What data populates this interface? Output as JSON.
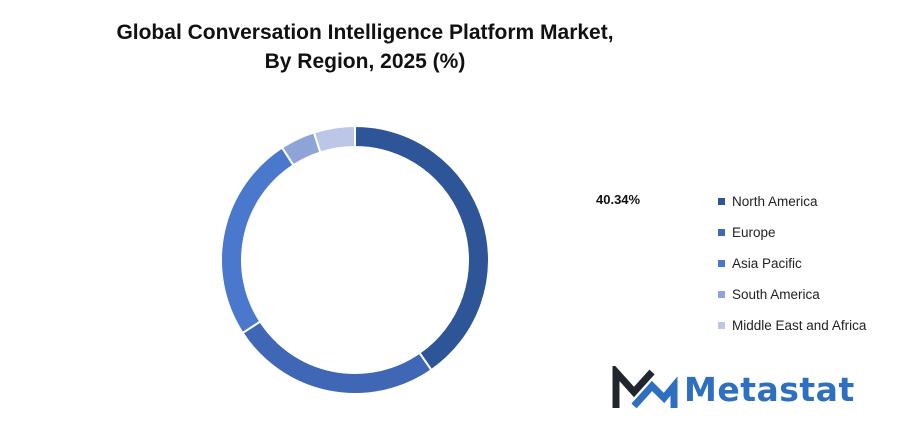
{
  "title_line1": "Global Conversation Intelligence Platform Market,",
  "title_line2": "By Region, 2025 (%)",
  "chart_data": {
    "type": "pie",
    "donut": true,
    "categories": [
      "North America",
      "Europe",
      "Asia Pacific",
      "South America",
      "Middle East and Africa"
    ],
    "values": [
      40.34,
      25.5,
      25.0,
      4.2,
      4.96
    ],
    "colors": [
      "#2e5597",
      "#3f67b5",
      "#4a78cc",
      "#8fa4d6",
      "#bcc6e6"
    ],
    "data_label": "40.34%",
    "legend_position": "right"
  },
  "legend": [
    {
      "label": "North America",
      "color": "#2e5597"
    },
    {
      "label": "Europe",
      "color": "#3f67b5"
    },
    {
      "label": "Asia Pacific",
      "color": "#4a78cc"
    },
    {
      "label": "South America",
      "color": "#8fa4d6"
    },
    {
      "label": "Middle East and Africa",
      "color": "#bcc6e6"
    }
  ],
  "logo": {
    "text": "Metastat",
    "icon": "metastat-m-logo-icon",
    "color": "#2f6fc0",
    "dark_color": "#20262e"
  }
}
